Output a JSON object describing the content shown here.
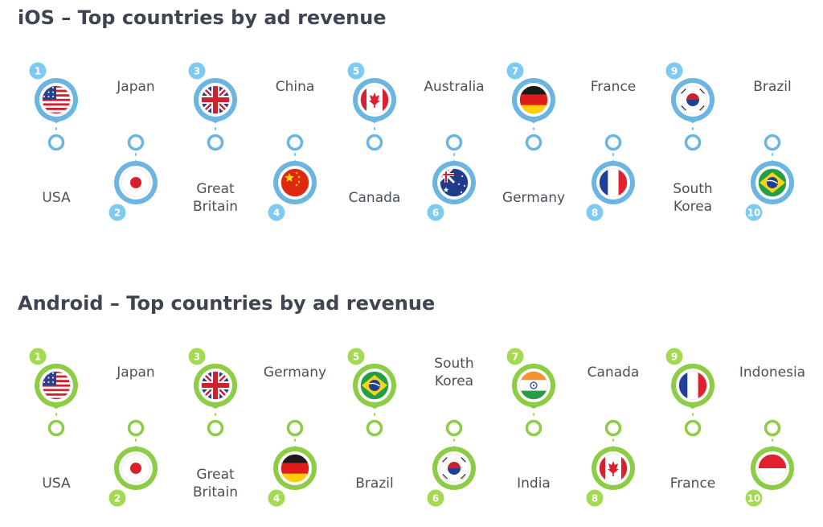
{
  "sections": [
    {
      "id": "ios",
      "title": "iOS – Top countries by ad revenue",
      "line_color": "#72c6ee",
      "marker_color": "#6bb5e0",
      "badge_color": "#7fcaf0",
      "items": [
        {
          "rank": "1",
          "country": [
            "USA"
          ],
          "flag": "us-flag"
        },
        {
          "rank": "2",
          "country": [
            "Japan"
          ],
          "flag": "japan-flag"
        },
        {
          "rank": "3",
          "country": [
            "Great",
            "Britain"
          ],
          "flag": "uk-flag"
        },
        {
          "rank": "4",
          "country": [
            "China"
          ],
          "flag": "china-flag"
        },
        {
          "rank": "5",
          "country": [
            "Canada"
          ],
          "flag": "canada-flag"
        },
        {
          "rank": "6",
          "country": [
            "Australia"
          ],
          "flag": "australia-flag"
        },
        {
          "rank": "7",
          "country": [
            "Germany"
          ],
          "flag": "germany-flag"
        },
        {
          "rank": "8",
          "country": [
            "France"
          ],
          "flag": "france-flag"
        },
        {
          "rank": "9",
          "country": [
            "South",
            "Korea"
          ],
          "flag": "south-korea-flag"
        },
        {
          "rank": "10",
          "country": [
            "Brazil"
          ],
          "flag": "brazil-flag"
        }
      ]
    },
    {
      "id": "android",
      "title": "Android – Top countries by ad revenue",
      "line_color": "#a2dc4c",
      "marker_color": "#8dcc45",
      "badge_color": "#a4da52",
      "items": [
        {
          "rank": "1",
          "country": [
            "USA"
          ],
          "flag": "us-flag"
        },
        {
          "rank": "2",
          "country": [
            "Japan"
          ],
          "flag": "japan-flag"
        },
        {
          "rank": "3",
          "country": [
            "Great",
            "Britain"
          ],
          "flag": "uk-flag"
        },
        {
          "rank": "4",
          "country": [
            "Germany"
          ],
          "flag": "germany-flag"
        },
        {
          "rank": "5",
          "country": [
            "Brazil"
          ],
          "flag": "brazil-flag"
        },
        {
          "rank": "6",
          "country": [
            "South",
            "Korea"
          ],
          "flag": "south-korea-flag"
        },
        {
          "rank": "7",
          "country": [
            "India"
          ],
          "flag": "india-flag"
        },
        {
          "rank": "8",
          "country": [
            "Canada"
          ],
          "flag": "canada-flag"
        },
        {
          "rank": "9",
          "country": [
            "France"
          ],
          "flag": "france-flag"
        },
        {
          "rank": "10",
          "country": [
            "Indonesia"
          ],
          "flag": "indonesia-flag"
        }
      ]
    }
  ]
}
